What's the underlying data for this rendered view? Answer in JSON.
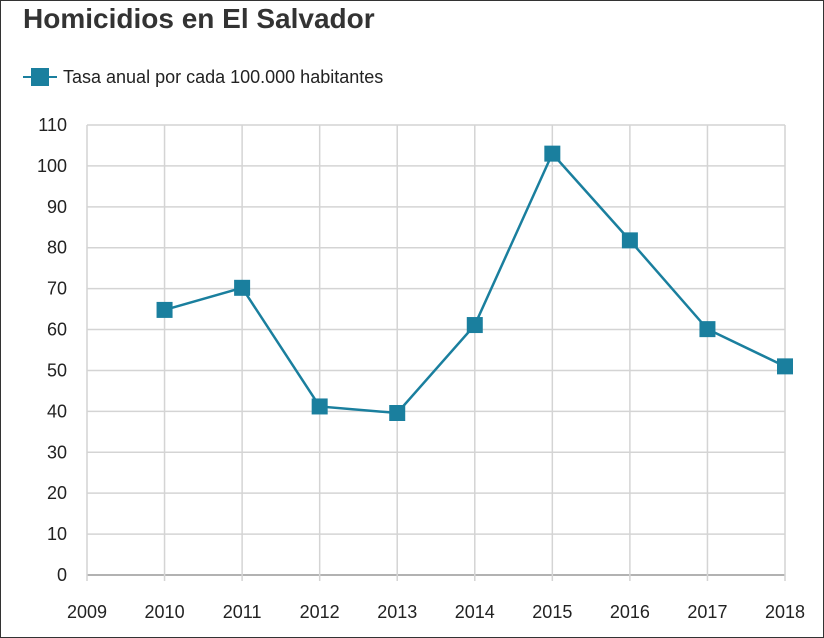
{
  "chart_data": {
    "type": "line",
    "title": "Homicidios en El Salvador",
    "xlabel": "",
    "ylabel": "",
    "x_ticks": [
      "2009",
      "2010",
      "2011",
      "2012",
      "2013",
      "2014",
      "2015",
      "2016",
      "2017",
      "2018"
    ],
    "y_ticks": [
      "0",
      "10",
      "20",
      "30",
      "40",
      "50",
      "60",
      "70",
      "80",
      "90",
      "100",
      "110"
    ],
    "xlim": [
      2009,
      2018
    ],
    "ylim": [
      0,
      110
    ],
    "grid": true,
    "legend_position": "top-left",
    "series": [
      {
        "name": "Tasa anual por cada 100.000 habitantes",
        "color": "#1a7f9e",
        "marker": "square",
        "x": [
          2010,
          2011,
          2012,
          2013,
          2014,
          2015,
          2016,
          2017,
          2018
        ],
        "y": [
          64.8,
          70.2,
          41.2,
          39.6,
          61.1,
          103.0,
          81.8,
          60.1,
          51.0
        ]
      }
    ]
  }
}
